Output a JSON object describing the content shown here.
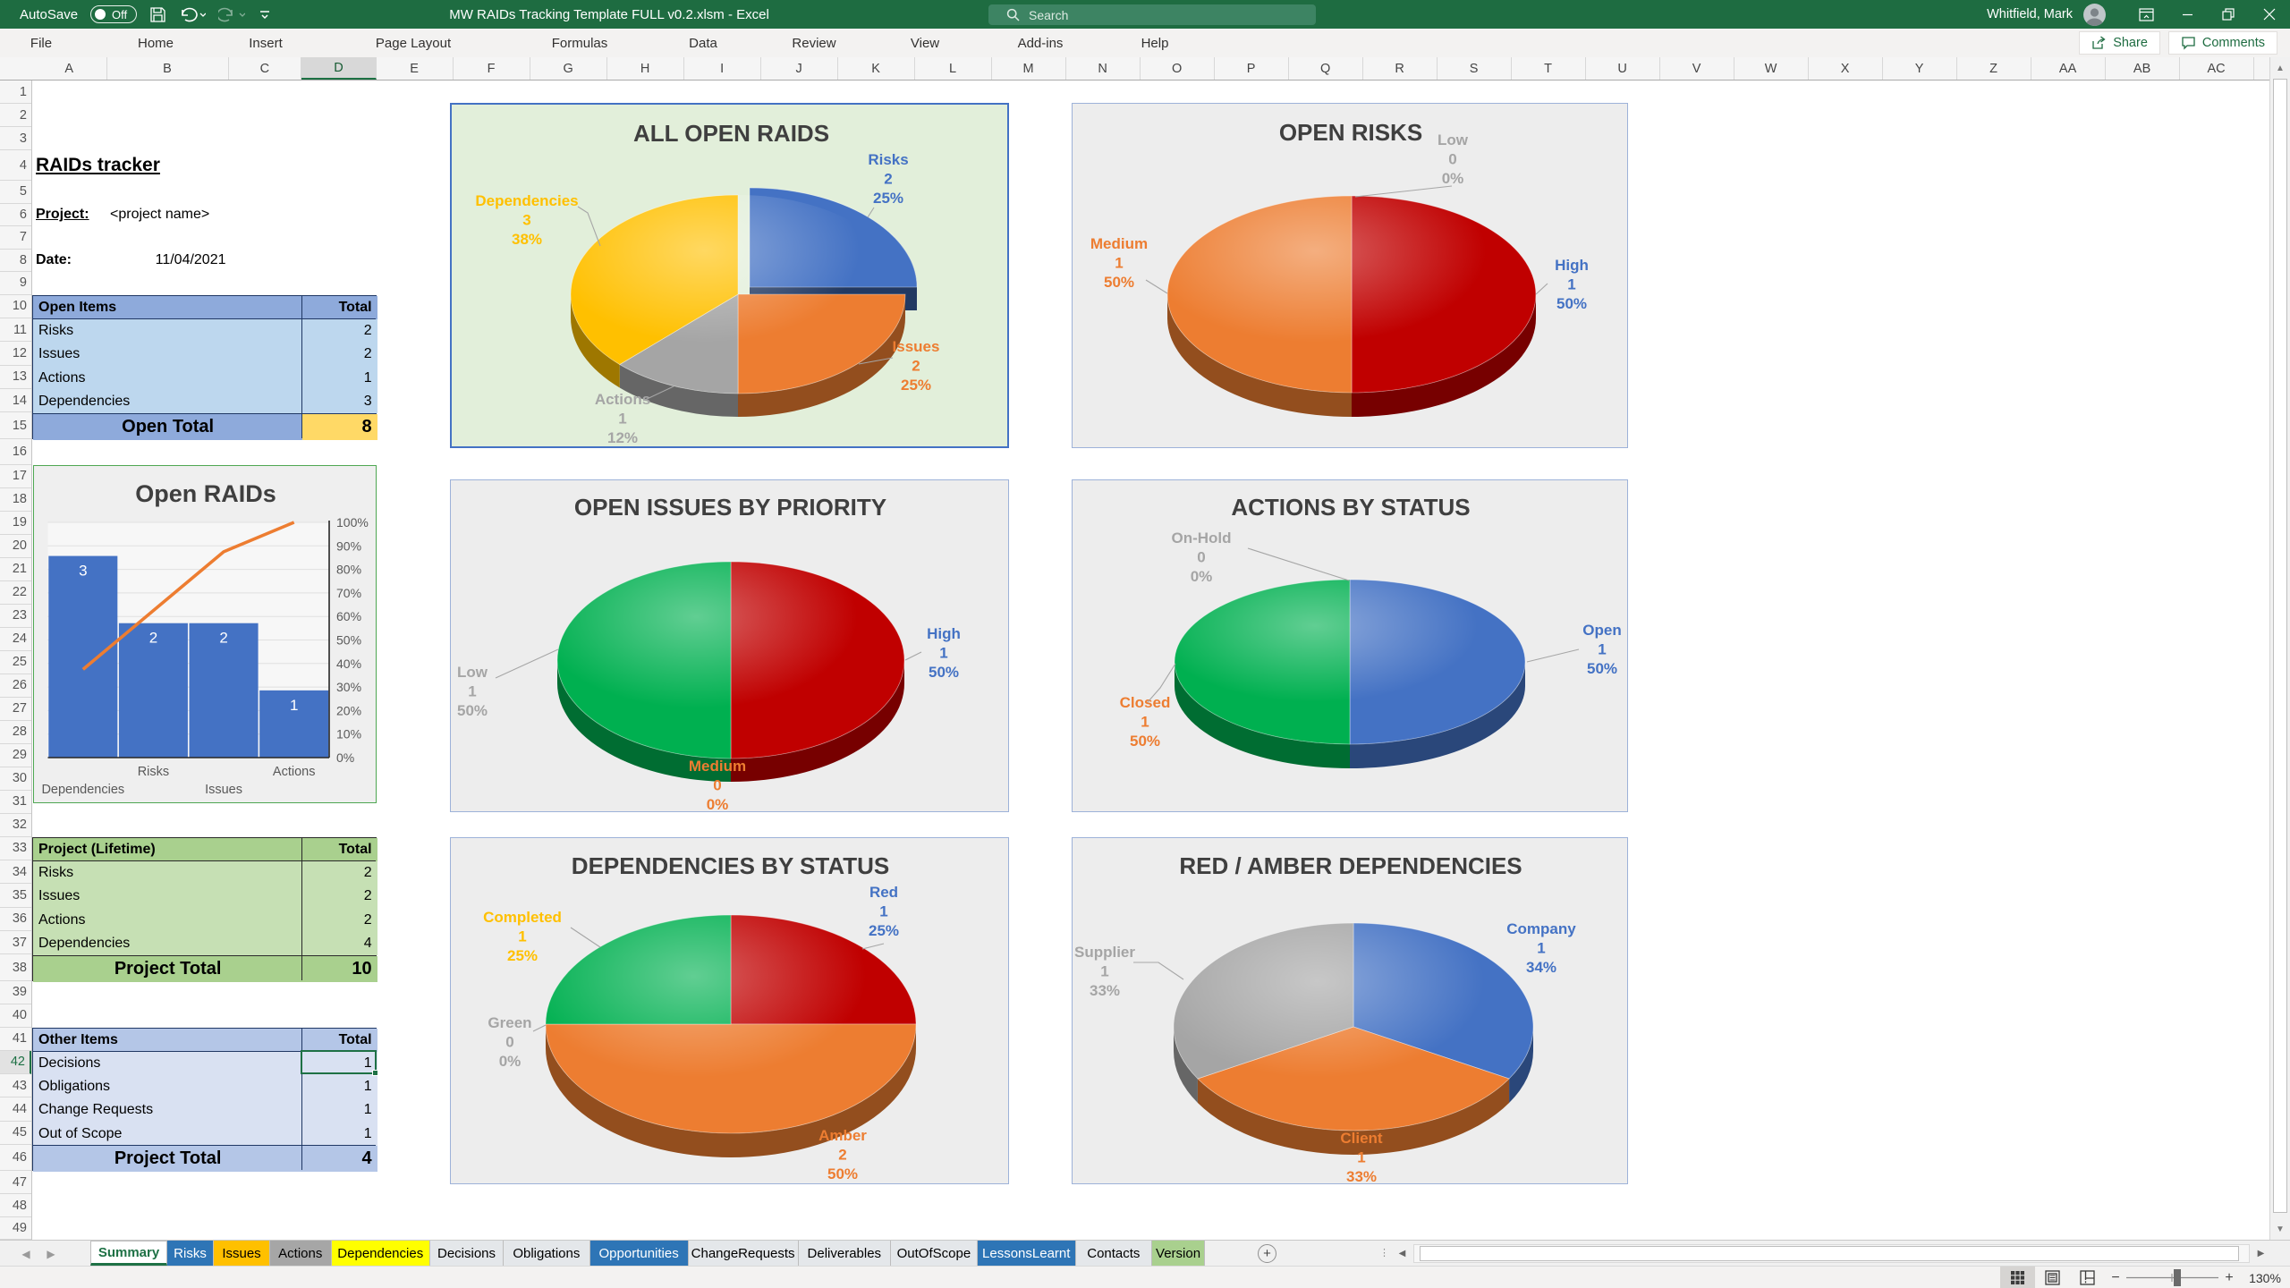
{
  "titlebar": {
    "autosave_label": "AutoSave",
    "autosave_state": "Off",
    "title": "MW RAIDs Tracking Template FULL v0.2.xlsm  -  Excel",
    "search_placeholder": "Search",
    "user_name": "Whitfield, Mark",
    "icons": [
      "save-icon",
      "undo-icon",
      "redo-icon",
      "quick-access-icon",
      "ribbon-display-icon",
      "minimize-icon",
      "restore-icon",
      "close-icon"
    ]
  },
  "ribbon": {
    "tabs": [
      "File",
      "Home",
      "Insert",
      "Page Layout",
      "Formulas",
      "Data",
      "Review",
      "View",
      "Add-ins",
      "Help"
    ],
    "share_label": "Share",
    "comments_label": "Comments"
  },
  "grid": {
    "columns": [
      "A",
      "B",
      "C",
      "D",
      "E",
      "F",
      "G",
      "H",
      "I",
      "J",
      "K",
      "L",
      "M",
      "N",
      "O",
      "P",
      "Q",
      "R",
      "S",
      "T",
      "U",
      "V",
      "W",
      "X",
      "Y",
      "Z",
      "AA",
      "AB",
      "AC"
    ],
    "selected_column": "D",
    "row_count": 49,
    "selected_row": 42,
    "active_cell": "D42"
  },
  "cells": {
    "sheet_title": "RAIDs tracker",
    "project_label": "Project:",
    "project_value": "<project name>",
    "date_label": "Date:",
    "date_value": "11/04/2021"
  },
  "tables": [
    {
      "id": "open-items",
      "header": "Open Items",
      "total_header": "Total",
      "rows": [
        [
          "Risks",
          "2"
        ],
        [
          "Issues",
          "2"
        ],
        [
          "Actions",
          "1"
        ],
        [
          "Dependencies",
          "3"
        ]
      ],
      "footer": "Open Total",
      "footer_total": "8",
      "header_fill": "#8EAADB",
      "body_fill": "#BDD7EE",
      "footer_fill": "#8EAADB",
      "total_fill": "#FFD966",
      "border_color": "#203864"
    },
    {
      "id": "project-lifetime",
      "header": "Project (Lifetime)",
      "total_header": "Total",
      "rows": [
        [
          "Risks",
          "2"
        ],
        [
          "Issues",
          "2"
        ],
        [
          "Actions",
          "2"
        ],
        [
          "Dependencies",
          "4"
        ]
      ],
      "footer": "Project Total",
      "footer_total": "10",
      "header_fill": "#A9D08E",
      "body_fill": "#C6E0B4",
      "footer_fill": "#A9D08E",
      "total_fill": "#A9D08E",
      "border_color": "#2a2a2a"
    },
    {
      "id": "other-items",
      "header": "Other Items",
      "total_header": "Total",
      "rows": [
        [
          "Decisions",
          "1"
        ],
        [
          "Obligations",
          "1"
        ],
        [
          "Change Requests",
          "1"
        ],
        [
          "Out of Scope",
          "1"
        ]
      ],
      "footer": "Project Total",
      "footer_total": "4",
      "header_fill": "#B4C6E7",
      "body_fill": "#D9E1F2",
      "footer_fill": "#B4C6E7",
      "total_fill": "#B4C6E7",
      "border_color": "#203864"
    }
  ],
  "chart_data": [
    {
      "id": "open-raids-pareto",
      "type": "pareto",
      "title": "Open RAIDs",
      "categories": [
        "Dependencies",
        "Risks",
        "Issues",
        "Actions"
      ],
      "values": [
        3,
        2,
        2,
        1
      ],
      "cumulative_pct": [
        37.5,
        62.5,
        87.5,
        100
      ],
      "axis_labels": [
        "0%",
        "10%",
        "20%",
        "30%",
        "40%",
        "50%",
        "60%",
        "70%",
        "80%",
        "90%",
        "100%"
      ],
      "ylim": [
        0,
        3.5
      ],
      "bar_color": "#4472C4",
      "line_color": "#ED7D31",
      "grid_on": true,
      "legend": "none",
      "bg": "#EFEFEF",
      "plot_bg": "#F7F7F7",
      "border": "#4EA752"
    },
    {
      "id": "all-open-raids",
      "type": "pie",
      "title": "ALL OPEN RAIDS",
      "bg": "#E2EFDA",
      "border": "#4472C4",
      "slices": [
        {
          "name": "Risks",
          "value": 2,
          "pct": "25%",
          "fill": "#4472C4",
          "label_color": "#4472C4",
          "explode": true,
          "leader": true
        },
        {
          "name": "Issues",
          "value": 2,
          "pct": "25%",
          "fill": "#ED7D31",
          "label_color": "#ED7D31",
          "leader": true
        },
        {
          "name": "Actions",
          "value": 1,
          "pct": "12%",
          "fill": "#A5A5A5",
          "label_color": "#A5A5A5",
          "leader": true
        },
        {
          "name": "Dependencies",
          "value": 3,
          "pct": "38%",
          "fill": "#FFC000",
          "label_color": "#FFC000",
          "leader": true
        }
      ]
    },
    {
      "id": "open-risks",
      "type": "pie",
      "title": "OPEN RISKS",
      "bg": "#EDEDED",
      "border": "#9DB2D9",
      "slices": [
        {
          "name": "High",
          "value": 1,
          "pct": "50%",
          "fill": "#C00000",
          "label_color": "#4472C4",
          "leader": true
        },
        {
          "name": "Medium",
          "value": 1,
          "pct": "50%",
          "fill": "#ED7D31",
          "label_color": "#ED7D31",
          "leader": true
        },
        {
          "name": "Low",
          "value": 0,
          "pct": "0%",
          "fill": "#A5A5A5",
          "label_color": "#A5A5A5",
          "leader": true
        }
      ]
    },
    {
      "id": "open-issues-by-priority",
      "type": "pie",
      "title": "OPEN ISSUES BY PRIORITY",
      "bg": "#EDEDED",
      "border": "#9DB2D9",
      "slices": [
        {
          "name": "High",
          "value": 1,
          "pct": "50%",
          "fill": "#C00000",
          "label_color": "#4472C4",
          "leader": true
        },
        {
          "name": "Medium",
          "value": 0,
          "pct": "0%",
          "fill": "#ED7D31",
          "label_color": "#ED7D31",
          "leader": false
        },
        {
          "name": "Low",
          "value": 1,
          "pct": "50%",
          "fill": "#00B050",
          "label_color": "#A5A5A5",
          "leader": true
        }
      ]
    },
    {
      "id": "actions-by-status",
      "type": "pie",
      "title": "ACTIONS BY STATUS",
      "bg": "#EDEDED",
      "border": "#9DB2D9",
      "slices": [
        {
          "name": "Open",
          "value": 1,
          "pct": "50%",
          "fill": "#4472C4",
          "label_color": "#4472C4",
          "leader": true
        },
        {
          "name": "Closed",
          "value": 1,
          "pct": "50%",
          "fill": "#00B050",
          "label_color": "#ED7D31",
          "leader": true
        },
        {
          "name": "On-Hold",
          "value": 0,
          "pct": "0%",
          "fill": "#A5A5A5",
          "label_color": "#A5A5A5",
          "leader": true
        }
      ]
    },
    {
      "id": "dependencies-by-status",
      "type": "pie",
      "title": "DEPENDENCIES BY STATUS",
      "bg": "#EDEDED",
      "border": "#9DB2D9",
      "slices": [
        {
          "name": "Red",
          "value": 1,
          "pct": "25%",
          "fill": "#C00000",
          "label_color": "#4472C4",
          "leader": true
        },
        {
          "name": "Amber",
          "value": 2,
          "pct": "50%",
          "fill": "#ED7D31",
          "label_color": "#ED7D31",
          "leader": false
        },
        {
          "name": "Green",
          "value": 0,
          "pct": "0%",
          "fill": "#00B050",
          "label_color": "#A5A5A5",
          "leader": true
        },
        {
          "name": "Completed",
          "value": 1,
          "pct": "25%",
          "fill": "#00B050",
          "label_color": "#FFC000",
          "leader": true
        }
      ]
    },
    {
      "id": "red-amber-dependencies",
      "type": "pie",
      "title": "RED / AMBER DEPENDENCIES",
      "bg": "#EDEDED",
      "border": "#9DB2D9",
      "slices": [
        {
          "name": "Company",
          "value": 1,
          "pct": "34%",
          "fill": "#4472C4",
          "label_color": "#4472C4",
          "leader": false
        },
        {
          "name": "Client",
          "value": 1,
          "pct": "33%",
          "fill": "#ED7D31",
          "label_color": "#ED7D31",
          "leader": false
        },
        {
          "name": "Supplier",
          "value": 1,
          "pct": "33%",
          "fill": "#A5A5A5",
          "label_color": "#A5A5A5",
          "leader": true
        }
      ]
    }
  ],
  "sheet_tabs": {
    "tabs": [
      {
        "label": "Summary",
        "active": true,
        "fill": "#FFFFFF",
        "text": "#1E7145"
      },
      {
        "label": "Risks",
        "fill": "#2E75B6",
        "text": "#FFFFFF"
      },
      {
        "label": "Issues",
        "fill": "#FFC000",
        "text": "#000000"
      },
      {
        "label": "Actions",
        "fill": "#A6A6A6",
        "text": "#000000"
      },
      {
        "label": "Dependencies",
        "fill": "#FFFF00",
        "text": "#000000"
      },
      {
        "label": "Decisions",
        "fill": "#E4E7EA",
        "text": "#000000"
      },
      {
        "label": "Obligations",
        "fill": "#E4E7EA",
        "text": "#000000"
      },
      {
        "label": "Opportunities",
        "fill": "#2E75B6",
        "text": "#FFFFFF"
      },
      {
        "label": "ChangeRequests",
        "fill": "#E4E7EA",
        "text": "#000000"
      },
      {
        "label": "Deliverables",
        "fill": "#E4E7EA",
        "text": "#000000"
      },
      {
        "label": "OutOfScope",
        "fill": "#E4E7EA",
        "text": "#000000"
      },
      {
        "label": "LessonsLearnt",
        "fill": "#2E75B6",
        "text": "#FFFFFF"
      },
      {
        "label": "Contacts",
        "fill": "#E4E7EA",
        "text": "#000000"
      },
      {
        "label": "Version",
        "fill": "#A9D08E",
        "text": "#000000"
      }
    ],
    "add_sheet_label": "+"
  },
  "status_bar": {
    "zoom": "130%",
    "zoom_out": "−",
    "zoom_in": "+",
    "views": [
      "normal-view",
      "page-layout-view",
      "page-break-view"
    ]
  }
}
